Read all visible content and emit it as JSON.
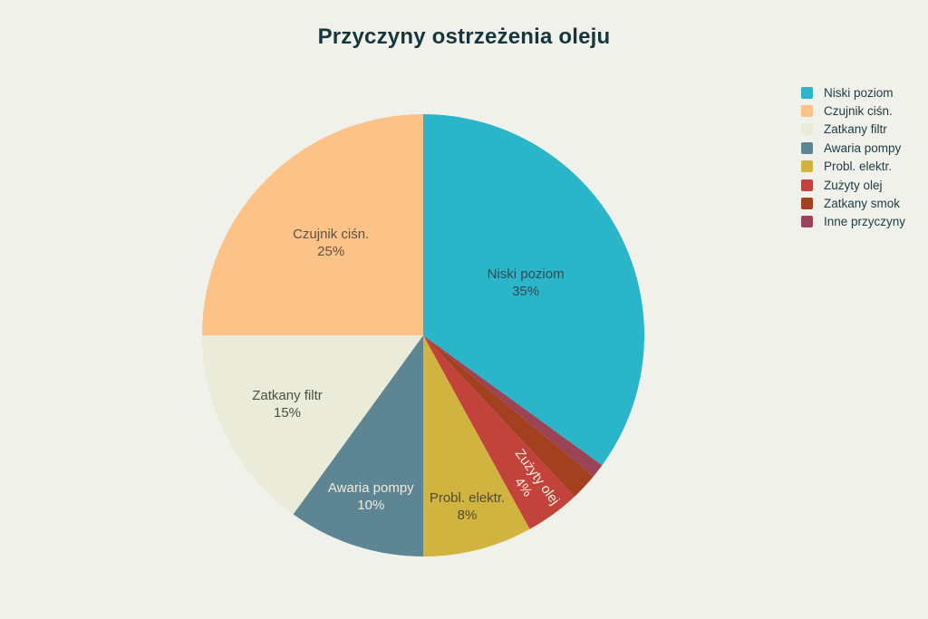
{
  "chart_data": {
    "type": "pie",
    "title": "Przyczyny ostrzeżenia oleju",
    "total": 100,
    "unit": "%",
    "legend_position": "right",
    "direction": "clockwise",
    "start_angle": "top",
    "slices": [
      {
        "label": "Niski poziom",
        "value": 35,
        "pct_label": "35%",
        "color": "#2ab6c8",
        "text_color": "#2d4c55",
        "show_label": true,
        "label_radius_frac": 0.52
      },
      {
        "label": "Czujnik ciśn.",
        "value": 25,
        "pct_label": "25%",
        "color": "#fcc287",
        "text_color": "#5d5347",
        "show_label": true,
        "label_radius_frac": 0.59
      },
      {
        "label": "Zatkany filtr",
        "value": 15,
        "pct_label": "15%",
        "color": "#ebebd9",
        "text_color": "#4c4e44",
        "show_label": true,
        "label_radius_frac": 0.69
      },
      {
        "label": "Awaria pompy",
        "value": 10,
        "pct_label": "10%",
        "color": "#5d8594",
        "text_color": "#eeebdb",
        "show_label": true,
        "label_radius_frac": 0.765
      },
      {
        "label": "Probl. elektr.",
        "value": 8,
        "pct_label": "8%",
        "color": "#d1b440",
        "text_color": "#514b30",
        "show_label": true,
        "label_radius_frac": 0.8
      },
      {
        "label": "Zużyty olej",
        "value": 4,
        "pct_label": "4%",
        "color": "#c2433c",
        "text_color": "#f4eedd",
        "show_label": true,
        "label_radius_frac": 0.82,
        "label_rotation_deg": 54
      },
      {
        "label": "Zatkany smok",
        "value": 2,
        "color": "#a3401f",
        "show_label": false
      },
      {
        "label": "Inne przyczyny",
        "value": 1,
        "color": "#9b4458",
        "show_label": false
      }
    ],
    "draw_order_clockwise_from_top": [
      0,
      7,
      6,
      5,
      4,
      3,
      2,
      1
    ]
  },
  "colors": {
    "background": "#f1f1eb",
    "title_text": "#17353d",
    "legend_text": "#1d3b42"
  }
}
